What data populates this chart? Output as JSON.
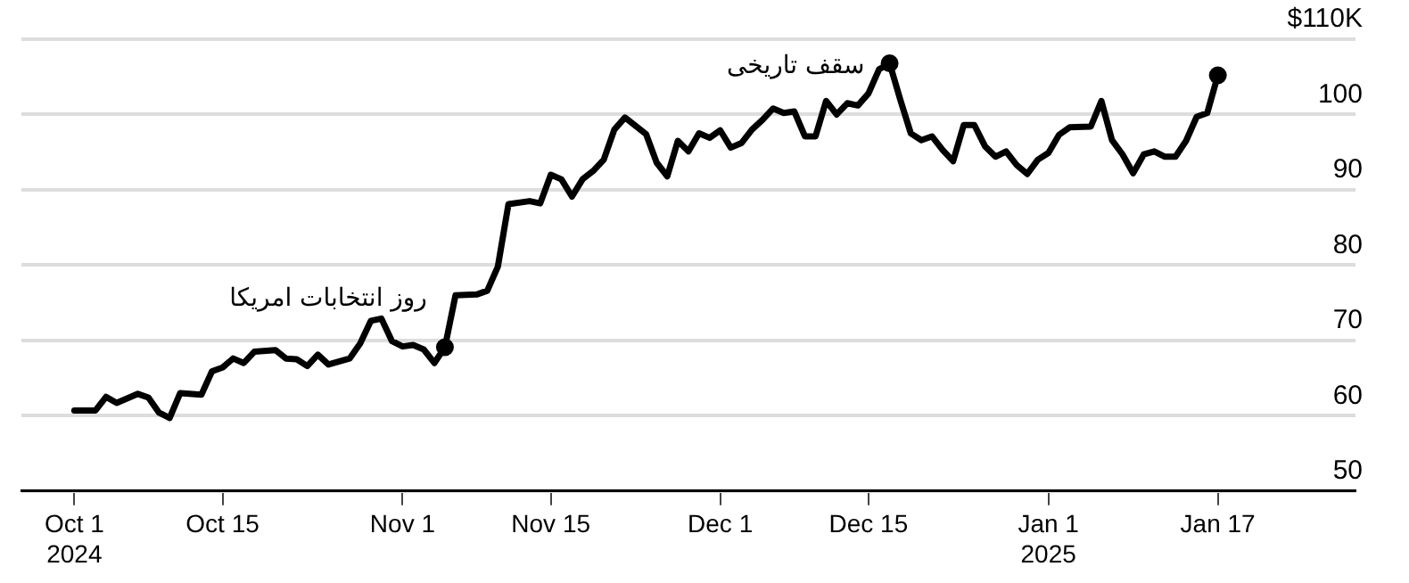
{
  "chart_data": {
    "type": "line",
    "x": [
      "2024-10-01",
      "2024-10-03",
      "2024-10-04",
      "2024-10-05",
      "2024-10-07",
      "2024-10-08",
      "2024-10-09",
      "2024-10-10",
      "2024-10-11",
      "2024-10-13",
      "2024-10-14",
      "2024-10-15",
      "2024-10-16",
      "2024-10-17",
      "2024-10-18",
      "2024-10-20",
      "2024-10-21",
      "2024-10-22",
      "2024-10-23",
      "2024-10-24",
      "2024-10-25",
      "2024-10-27",
      "2024-10-28",
      "2024-10-29",
      "2024-10-30",
      "2024-10-31",
      "2024-11-01",
      "2024-11-02",
      "2024-11-03",
      "2024-11-04",
      "2024-11-05",
      "2024-11-06",
      "2024-11-08",
      "2024-11-09",
      "2024-11-10",
      "2024-11-11",
      "2024-11-13",
      "2024-11-14",
      "2024-11-15",
      "2024-11-16",
      "2024-11-17",
      "2024-11-18",
      "2024-11-19",
      "2024-11-20",
      "2024-11-21",
      "2024-11-22",
      "2024-11-24",
      "2024-11-25",
      "2024-11-26",
      "2024-11-27",
      "2024-11-28",
      "2024-11-29",
      "2024-11-30",
      "2024-12-01",
      "2024-12-02",
      "2024-12-03",
      "2024-12-04",
      "2024-12-05",
      "2024-12-06",
      "2024-12-07",
      "2024-12-08",
      "2024-12-09",
      "2024-12-10",
      "2024-12-11",
      "2024-12-12",
      "2024-12-13",
      "2024-12-14",
      "2024-12-15",
      "2024-12-16",
      "2024-12-17",
      "2024-12-18",
      "2024-12-19",
      "2024-12-20",
      "2024-12-21",
      "2024-12-22",
      "2024-12-23",
      "2024-12-24",
      "2024-12-25",
      "2024-12-26",
      "2024-12-27",
      "2024-12-28",
      "2024-12-29",
      "2024-12-30",
      "2024-12-31",
      "2025-01-01",
      "2025-01-02",
      "2025-01-03",
      "2025-01-05",
      "2025-01-06",
      "2025-01-07",
      "2025-01-08",
      "2025-01-09",
      "2025-01-10",
      "2025-01-11",
      "2025-01-12",
      "2025-01-13",
      "2025-01-14",
      "2025-01-15",
      "2025-01-16",
      "2025-01-17"
    ],
    "series": [
      {
        "color": "#000000",
        "values": [
          60.7,
          60.7,
          62.5,
          61.7,
          62.9,
          62.4,
          60.4,
          59.7,
          63.0,
          62.8,
          65.9,
          66.4,
          67.6,
          67.0,
          68.5,
          68.7,
          67.6,
          67.5,
          66.6,
          68.1,
          66.8,
          67.6,
          69.6,
          72.6,
          72.9,
          69.9,
          69.2,
          69.4,
          68.8,
          67.0,
          69.1,
          76.0,
          76.1,
          76.6,
          79.8,
          88.1,
          88.5,
          88.2,
          92.0,
          91.4,
          89.1,
          91.4,
          92.5,
          94.0,
          98.0,
          99.6,
          97.4,
          93.6,
          91.8,
          96.5,
          95.1,
          97.5,
          96.9,
          97.9,
          95.6,
          96.2,
          98.0,
          99.3,
          100.8,
          100.2,
          100.4,
          97.1,
          97.1,
          101.8,
          100.0,
          101.5,
          101.2,
          102.8,
          106.0,
          106.8,
          102.0,
          97.5,
          96.6,
          97.1,
          95.3,
          93.8,
          98.6,
          98.6,
          95.8,
          94.4,
          95.1,
          93.3,
          92.1,
          94.0,
          94.9,
          97.3,
          98.3,
          98.4,
          101.8,
          96.6,
          94.7,
          92.2,
          94.7,
          95.1,
          94.4,
          94.4,
          96.5,
          99.7,
          100.2,
          105.2
        ]
      }
    ],
    "xlim": [
      "2024-09-26",
      "2025-01-30"
    ],
    "xticks": [
      {
        "value": "2024-10-01",
        "label": "Oct 1\n2024"
      },
      {
        "value": "2024-10-15",
        "label": "Oct 15"
      },
      {
        "value": "2024-11-01",
        "label": "Nov 1"
      },
      {
        "value": "2024-11-15",
        "label": "Nov 15"
      },
      {
        "value": "2024-12-01",
        "label": "Dec 1"
      },
      {
        "value": "2024-12-15",
        "label": "Dec 15"
      },
      {
        "value": "2025-01-01",
        "label": "Jan 1\n2025"
      },
      {
        "value": "2025-01-17",
        "label": "Jan 17"
      }
    ],
    "ylim": [
      50,
      110
    ],
    "yticks": [
      50,
      60,
      70,
      80,
      90,
      100,
      {
        "value": 110,
        "label": "$110K"
      }
    ],
    "grid": "y",
    "marker": "none",
    "annotations": [
      {
        "text": "روز انتخابات امریکا",
        "x": "2024-11-05",
        "y": 69.1
      },
      {
        "text": "سقف تاریخی",
        "x": "2024-12-17",
        "y": 106.8
      }
    ]
  }
}
